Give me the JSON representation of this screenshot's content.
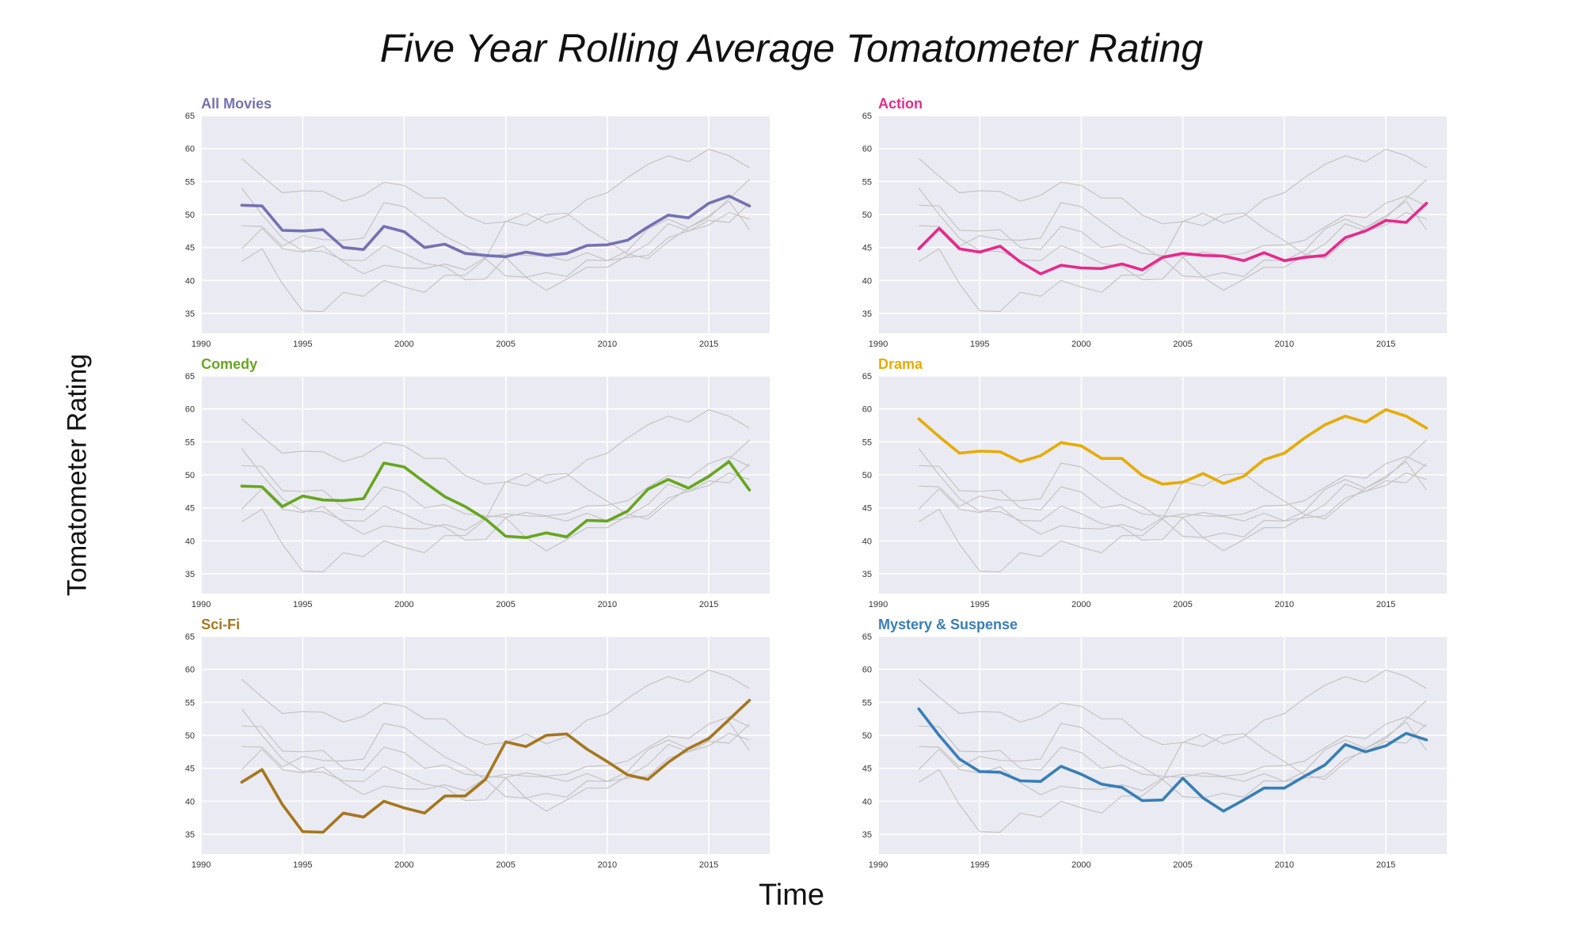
{
  "title": "Five Year Rolling Average Tomatometer Rating",
  "ylabel": "Tomatometer Rating",
  "xlabel": "Time",
  "chart_data": {
    "type": "line",
    "layout": "small-multiples 3x2",
    "x": [
      1992,
      1993,
      1994,
      1995,
      1996,
      1997,
      1998,
      1999,
      2000,
      2001,
      2002,
      2003,
      2004,
      2005,
      2006,
      2007,
      2008,
      2009,
      2010,
      2011,
      2012,
      2013,
      2014,
      2015,
      2016,
      2017
    ],
    "xlim": [
      1990,
      2018
    ],
    "ylim": [
      32,
      65
    ],
    "xticks": [
      1990,
      1995,
      2000,
      2005,
      2010,
      2015
    ],
    "yticks": [
      35,
      40,
      45,
      50,
      55,
      60,
      65
    ],
    "grid": true,
    "background_series_color": "#c4c4c4",
    "panels": [
      {
        "name": "All Movies",
        "color": "#7570b3",
        "values": [
          51.4,
          51.3,
          47.6,
          47.5,
          47.7,
          45.0,
          44.7,
          48.2,
          47.4,
          45.0,
          45.5,
          44.1,
          43.8,
          43.6,
          44.3,
          43.8,
          44.1,
          45.3,
          45.4,
          46.1,
          48.1,
          49.9,
          49.5,
          51.7,
          52.8,
          51.3
        ]
      },
      {
        "name": "Action",
        "color": "#e7298a",
        "values": [
          44.8,
          47.9,
          44.8,
          44.3,
          45.2,
          42.8,
          41.0,
          42.3,
          41.9,
          41.8,
          42.5,
          41.6,
          43.5,
          44.1,
          43.8,
          43.7,
          43.0,
          44.2,
          43.0,
          43.5,
          43.8,
          46.5,
          47.5,
          49.1,
          48.8,
          51.7
        ]
      },
      {
        "name": "Comedy",
        "color": "#66a61e",
        "values": [
          48.3,
          48.2,
          45.2,
          46.8,
          46.2,
          46.1,
          46.4,
          51.8,
          51.2,
          48.9,
          46.7,
          45.2,
          43.3,
          40.7,
          40.5,
          41.2,
          40.6,
          43.1,
          43.0,
          44.5,
          47.8,
          49.3,
          48.0,
          49.8,
          52.0,
          47.7
        ]
      },
      {
        "name": "Drama",
        "color": "#e6ab02",
        "values": [
          58.5,
          55.8,
          53.3,
          53.6,
          53.5,
          52.0,
          52.9,
          54.9,
          54.4,
          52.5,
          52.5,
          49.9,
          48.6,
          48.9,
          50.2,
          48.7,
          49.8,
          52.3,
          53.3,
          55.6,
          57.6,
          58.9,
          58.0,
          59.9,
          58.9,
          57.1
        ]
      },
      {
        "name": "Sci-Fi",
        "color": "#a6761d",
        "values": [
          42.9,
          44.8,
          39.5,
          35.4,
          35.3,
          38.2,
          37.6,
          40.0,
          39.0,
          38.2,
          40.8,
          40.8,
          43.3,
          49.0,
          48.3,
          50.0,
          50.2,
          47.9,
          46.0,
          44.0,
          43.3,
          45.9,
          48.0,
          49.5,
          52.4,
          55.3
        ]
      },
      {
        "name": "Mystery & Suspense",
        "color": "#377eb8",
        "values": [
          54.0,
          50.0,
          46.4,
          44.5,
          44.4,
          43.1,
          43.0,
          45.3,
          44.1,
          42.6,
          42.1,
          40.1,
          40.2,
          43.5,
          40.5,
          38.5,
          40.2,
          42.0,
          42.0,
          43.8,
          45.5,
          48.6,
          47.5,
          48.4,
          50.3,
          49.3
        ]
      }
    ]
  }
}
